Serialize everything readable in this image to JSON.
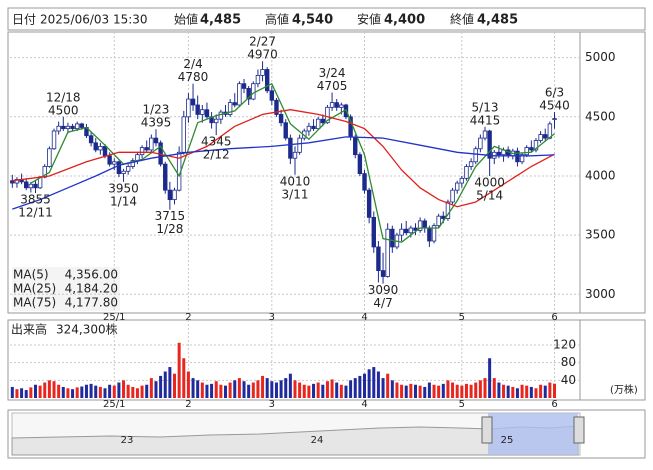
{
  "header": {
    "date_label": "日付",
    "datetime": "2025/06/03 15:30",
    "fields": [
      {
        "name": "始値",
        "value": "4,485",
        "color": "#111111"
      },
      {
        "name": "高値",
        "value": "4,540",
        "color": "#e0201a"
      },
      {
        "name": "安値",
        "value": "4,400",
        "color": "#1a8a1a"
      },
      {
        "name": "終値",
        "value": "4,485",
        "color": "#111111"
      }
    ]
  },
  "chart_data": {
    "type": "candlestick",
    "categories": [
      null,
      null,
      null,
      null,
      null,
      null,
      null,
      null,
      null,
      null,
      null,
      null,
      null,
      null,
      null,
      null,
      null,
      null,
      null,
      null,
      null,
      null,
      "25/1",
      null,
      null,
      null,
      null,
      null,
      null,
      null,
      null,
      null,
      null,
      null,
      null,
      null,
      null,
      null,
      "2",
      null,
      null,
      null,
      null,
      null,
      null,
      null,
      null,
      null,
      null,
      null,
      null,
      null,
      null,
      null,
      null,
      null,
      "3",
      null,
      null,
      null,
      null,
      null,
      null,
      null,
      null,
      null,
      null,
      null,
      null,
      null,
      null,
      null,
      null,
      null,
      null,
      null,
      "4",
      null,
      null,
      null,
      null,
      null,
      null,
      null,
      null,
      null,
      null,
      null,
      null,
      null,
      null,
      null,
      null,
      null,
      null,
      null,
      null,
      "5",
      null,
      null,
      null,
      null,
      null,
      null,
      null,
      null,
      null,
      null,
      null,
      null,
      null,
      null,
      null,
      null,
      null,
      null,
      null,
      "6"
    ],
    "open": [
      3960,
      3940,
      3970,
      3950,
      3900,
      3930,
      3900,
      3990,
      4080,
      4230,
      4380,
      4420,
      4400,
      4420,
      4400,
      4440,
      4410,
      4340,
      4280,
      4220,
      4250,
      4170,
      4100,
      4120,
      4020,
      4040,
      4080,
      4130,
      4180,
      4240,
      4220,
      4320,
      4280,
      4100,
      3880,
      3800,
      3880,
      4200,
      4500,
      4650,
      4600,
      4520,
      4560,
      4500,
      4450,
      4480,
      4540,
      4520,
      4620,
      4600,
      4780,
      4740,
      4650,
      4780,
      4850,
      4900,
      4720,
      4640,
      4520,
      4450,
      4320,
      4150,
      4200,
      4320,
      4380,
      4420,
      4400,
      4480,
      4450,
      4580,
      4620,
      4580,
      4600,
      4500,
      4330,
      4180,
      4020,
      3880,
      3650,
      3400,
      3200,
      3150,
      3550,
      3400,
      3500,
      3550,
      3520,
      3560,
      3540,
      3620,
      3560,
      3450,
      3580,
      3660,
      3640,
      3780,
      3880,
      3940,
      3980,
      4080,
      4120,
      4230,
      4320,
      4380,
      4150,
      4200,
      4180,
      4220,
      4170,
      4210,
      4120,
      4180,
      4240,
      4220,
      4300,
      4350,
      4320,
      4485
    ],
    "high": [
      4010,
      3990,
      4020,
      3980,
      3950,
      3960,
      4000,
      4100,
      4250,
      4400,
      4460,
      4500,
      4450,
      4440,
      4460,
      4450,
      4440,
      4370,
      4320,
      4280,
      4270,
      4200,
      4150,
      4130,
      4060,
      4100,
      4150,
      4200,
      4260,
      4300,
      4350,
      4395,
      4300,
      4120,
      3950,
      3900,
      4250,
      4550,
      4700,
      4780,
      4680,
      4600,
      4620,
      4540,
      4520,
      4560,
      4600,
      4650,
      4700,
      4800,
      4820,
      4760,
      4800,
      4900,
      4970,
      4920,
      4760,
      4660,
      4560,
      4480,
      4350,
      4250,
      4350,
      4400,
      4450,
      4480,
      4500,
      4520,
      4600,
      4705,
      4650,
      4620,
      4610,
      4520,
      4350,
      4200,
      4050,
      3900,
      3700,
      3450,
      3350,
      3600,
      3580,
      3520,
      3600,
      3620,
      3580,
      3600,
      3650,
      3640,
      3580,
      3600,
      3680,
      3700,
      3800,
      3900,
      3960,
      4000,
      4100,
      4150,
      4250,
      4350,
      4415,
      4390,
      4220,
      4260,
      4240,
      4250,
      4230,
      4240,
      4200,
      4260,
      4300,
      4320,
      4380,
      4400,
      4460,
      4540
    ],
    "low": [
      3900,
      3900,
      3930,
      3880,
      3860,
      3855,
      3890,
      3980,
      4070,
      4220,
      4350,
      4380,
      4360,
      4380,
      4380,
      4390,
      4320,
      4250,
      4200,
      4180,
      4150,
      4080,
      4050,
      3990,
      3950,
      4010,
      4060,
      4100,
      4150,
      4200,
      4200,
      4250,
      4080,
      3850,
      3715,
      3760,
      3870,
      4180,
      4450,
      4550,
      4480,
      4450,
      4480,
      4400,
      4345,
      4440,
      4500,
      4500,
      4580,
      4590,
      4700,
      4600,
      4640,
      4750,
      4800,
      4700,
      4600,
      4500,
      4420,
      4300,
      4100,
      4010,
      4180,
      4300,
      4340,
      4380,
      4390,
      4420,
      4440,
      4550,
      4550,
      4520,
      4480,
      4300,
      4150,
      4000,
      3850,
      3600,
      3350,
      3100,
      3090,
      3140,
      3350,
      3380,
      3450,
      3500,
      3480,
      3500,
      3520,
      3520,
      3400,
      3430,
      3560,
      3600,
      3620,
      3760,
      3850,
      3900,
      3960,
      4050,
      4100,
      4200,
      4300,
      4000,
      4100,
      4150,
      4120,
      4150,
      4140,
      4080,
      4100,
      4160,
      4200,
      4200,
      4280,
      4300,
      4310,
      4400
    ],
    "close": [
      3940,
      3970,
      3950,
      3900,
      3930,
      3900,
      3990,
      4080,
      4230,
      4380,
      4420,
      4400,
      4420,
      4400,
      4440,
      4410,
      4340,
      4280,
      4220,
      4250,
      4170,
      4100,
      4120,
      4020,
      4040,
      4080,
      4130,
      4180,
      4240,
      4220,
      4320,
      4280,
      4100,
      3880,
      3800,
      3880,
      4200,
      4500,
      4650,
      4600,
      4520,
      4560,
      4500,
      4450,
      4480,
      4540,
      4520,
      4620,
      4600,
      4780,
      4740,
      4650,
      4780,
      4850,
      4900,
      4720,
      4640,
      4520,
      4450,
      4320,
      4150,
      4200,
      4320,
      4380,
      4420,
      4400,
      4480,
      4450,
      4580,
      4620,
      4580,
      4600,
      4500,
      4330,
      4180,
      4020,
      3880,
      3650,
      3400,
      3200,
      3150,
      3550,
      3400,
      3500,
      3550,
      3520,
      3560,
      3540,
      3620,
      3560,
      3450,
      3580,
      3660,
      3640,
      3780,
      3880,
      3940,
      3980,
      4080,
      4120,
      4230,
      4320,
      4380,
      4150,
      4200,
      4180,
      4220,
      4170,
      4210,
      4120,
      4180,
      4240,
      4220,
      4300,
      4350,
      4320,
      4440,
      4485
    ],
    "up_color": "#ffffff",
    "down_color": "#1c2a8c",
    "edge_color": "#1c2a8c",
    "ylim": [
      2850,
      5200
    ],
    "yticks": [
      3000,
      3500,
      4000,
      4500,
      5000
    ],
    "grid": true,
    "series": [
      {
        "name": "MA(5)",
        "color": "#2e8b2e",
        "legend_value": "4,356.00",
        "x": [
          4,
          8,
          12,
          16,
          20,
          24,
          28,
          32,
          36,
          40,
          44,
          48,
          52,
          56,
          60,
          64,
          68,
          72,
          76,
          80,
          84,
          88,
          92,
          96,
          100,
          104,
          108,
          112,
          117
        ],
        "values": [
          3940,
          4030,
          4370,
          4410,
          4260,
          4100,
          4140,
          4250,
          4000,
          4450,
          4510,
          4550,
          4700,
          4780,
          4440,
          4310,
          4470,
          4560,
          4180,
          3470,
          3440,
          3560,
          3560,
          3790,
          4080,
          4250,
          4190,
          4200,
          4356
        ]
      },
      {
        "name": "MA(25)",
        "color": "#e0201a",
        "legend_value": "4,184.20",
        "x": [
          0,
          8,
          16,
          23,
          30,
          36,
          42,
          48,
          54,
          60,
          66,
          72,
          76,
          80,
          84,
          88,
          92,
          96,
          100,
          104,
          108,
          112,
          117
        ],
        "values": [
          3960,
          4000,
          4120,
          4200,
          4200,
          4150,
          4250,
          4420,
          4520,
          4560,
          4520,
          4460,
          4400,
          4250,
          4050,
          3900,
          3800,
          3740,
          3780,
          3880,
          3980,
          4080,
          4184
        ]
      },
      {
        "name": "MA(75)",
        "color": "#2233cc",
        "legend_value": "4,177.80",
        "x": [
          0,
          6,
          12,
          18,
          23,
          30,
          38,
          47,
          56,
          64,
          72,
          80,
          88,
          96,
          104,
          112,
          117
        ],
        "values": [
          3720,
          3800,
          3900,
          4000,
          4090,
          4150,
          4200,
          4230,
          4250,
          4280,
          4330,
          4320,
          4260,
          4200,
          4170,
          4170,
          4178
        ]
      }
    ],
    "annotations": [
      {
        "index": 5,
        "date": "12/11",
        "price": 3855
      },
      {
        "index": 11,
        "date": "12/18",
        "price": 4500
      },
      {
        "index": 24,
        "date": "1/14",
        "price": 3950
      },
      {
        "index": 31,
        "date": "1/23",
        "price": 4395
      },
      {
        "index": 34,
        "date": "1/28",
        "price": 3715
      },
      {
        "index": 39,
        "date": "2/4",
        "price": 4780
      },
      {
        "index": 44,
        "date": "2/12",
        "price": 4345
      },
      {
        "index": 54,
        "date": "2/27",
        "price": 4970
      },
      {
        "index": 61,
        "date": "3/11",
        "price": 4010
      },
      {
        "index": 69,
        "date": "3/24",
        "price": 4705
      },
      {
        "index": 80,
        "date": "4/7",
        "price": 3090
      },
      {
        "index": 102,
        "date": "5/13",
        "price": 4415
      },
      {
        "index": 103,
        "date": "5/14",
        "price": 4000
      },
      {
        "index": 117,
        "date": "6/3",
        "price": 4540
      }
    ],
    "volume": {
      "title": "出来高",
      "current": "324,300株",
      "unit": "(万株)",
      "up_color": "#e8261e",
      "down_color": "#1f2a9c",
      "ylim": [
        0,
        172
      ],
      "yticks": [
        40,
        80,
        120
      ],
      "values": [
        25,
        20,
        22,
        18,
        24,
        30,
        28,
        35,
        40,
        38,
        30,
        25,
        22,
        20,
        24,
        26,
        30,
        32,
        28,
        25,
        22,
        30,
        28,
        35,
        40,
        30,
        25,
        22,
        28,
        30,
        45,
        38,
        50,
        60,
        70,
        55,
        125,
        90,
        60,
        45,
        40,
        35,
        30,
        32,
        38,
        30,
        28,
        35,
        40,
        45,
        38,
        30,
        35,
        40,
        50,
        45,
        38,
        35,
        40,
        45,
        55,
        40,
        35,
        30,
        28,
        32,
        35,
        30,
        38,
        42,
        35,
        30,
        28,
        40,
        45,
        50,
        55,
        65,
        70,
        60,
        45,
        55,
        40,
        35,
        30,
        28,
        32,
        30,
        28,
        25,
        35,
        30,
        28,
        32,
        40,
        35,
        30,
        28,
        32,
        30,
        35,
        40,
        45,
        90,
        45,
        35,
        30,
        28,
        25,
        22,
        30,
        28,
        25,
        22,
        30,
        28,
        35,
        32.43
      ]
    }
  },
  "navigator": {
    "labels": [
      "23",
      "24",
      "25"
    ]
  }
}
